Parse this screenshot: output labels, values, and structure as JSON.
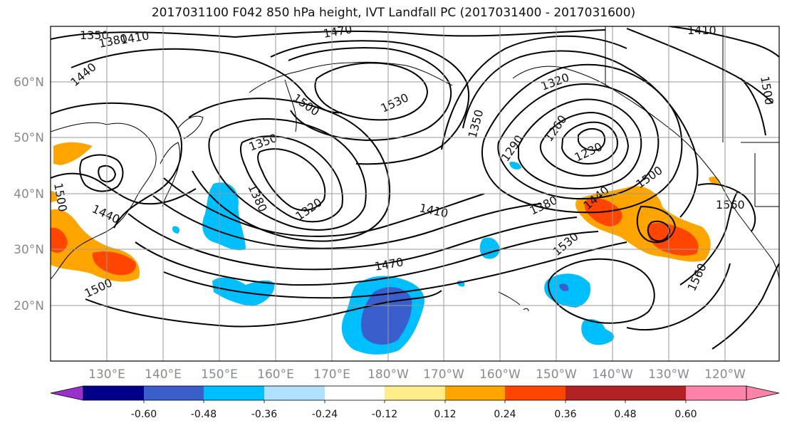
{
  "title": "2017031100 F042 850 hPa height, IVT Landfall PC (2017031400 - 2017031600)",
  "lat_labels": [
    "60°N",
    "50°N",
    "40°N",
    "30°N",
    "20°N"
  ],
  "lon_labels": [
    "130°E",
    "140°E",
    "150°E",
    "160°E",
    "170°E",
    "180°W",
    "170°W",
    "160°W",
    "150°W",
    "140°W",
    "130°W",
    "120°W"
  ],
  "contour_labels": [
    "1350",
    "1380",
    "1410",
    "1440",
    "1470",
    "1410",
    "1500",
    "1530",
    "1350",
    "1380",
    "1320",
    "1350",
    "1290",
    "1260",
    "1230",
    "1320",
    "1410",
    "1380",
    "1470",
    "1440",
    "1500",
    "1530",
    "1560",
    "1560",
    "1500",
    "1440",
    "1500",
    "1500"
  ],
  "colorbar": {
    "ticks": [
      "-0.60",
      "-0.48",
      "-0.36",
      "-0.24",
      "-0.12",
      "0.12",
      "0.24",
      "0.36",
      "0.48",
      "0.60"
    ],
    "colors": [
      "#9932cc",
      "#00008b",
      "#3a5fcd",
      "#00bfff",
      "#b0e2ff",
      "#ffffff",
      "#ffec8b",
      "#ffa500",
      "#ff4500",
      "#b22222",
      "#ff82ab"
    ]
  }
}
